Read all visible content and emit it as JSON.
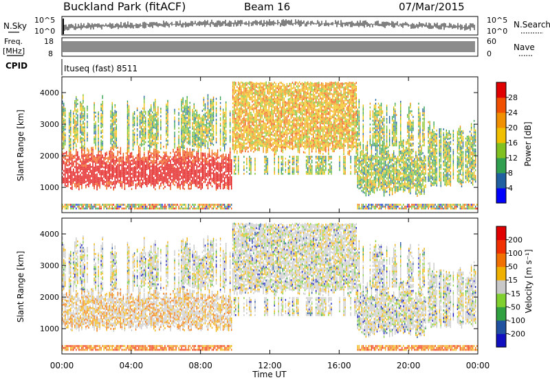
{
  "header": {
    "title": "Buckland Park (fitACF)",
    "beam": "Beam 16",
    "date": "07/Mar/2015"
  },
  "panels": {
    "nsky": {
      "label": "N.Sky",
      "ticks_left": [
        "10^5",
        "10^0"
      ],
      "right_label": "N.Search",
      "ticks_right": [
        "10^5",
        "10^0"
      ]
    },
    "freq": {
      "label_line1": "Freq.",
      "label_line2": "[MHz]",
      "ticks_left": [
        "18",
        "8"
      ],
      "right_label": "Nave",
      "ticks_right": [
        "60",
        "0"
      ]
    },
    "cpid": {
      "label": "CPID",
      "value": "Ituseq (fast) 8511"
    }
  },
  "chart_data": [
    {
      "type": "heatmap",
      "name": "power",
      "ylabel": "Slant Range [km]",
      "ylim": [
        200,
        4500
      ],
      "yticks": [
        1000,
        2000,
        3000,
        4000
      ],
      "colorbar": {
        "label": "Power [dB]",
        "ticks": [
          "4",
          "8",
          "12",
          "16",
          "20",
          "24",
          "28"
        ],
        "colors": [
          "#0000ff",
          "#2060a0",
          "#30a050",
          "#80c020",
          "#f0c000",
          "#f09000",
          "#f05000",
          "#e00000"
        ]
      }
    },
    {
      "type": "heatmap",
      "name": "velocity",
      "ylabel": "Slant Range [km]",
      "ylim": [
        200,
        4500
      ],
      "yticks": [
        1000,
        2000,
        3000,
        4000
      ],
      "xlabel": "Time UT",
      "xticks": [
        "00:00",
        "04:00",
        "08:00",
        "12:00",
        "16:00",
        "20:00",
        "00:00"
      ],
      "colorbar": {
        "label": "Velocity [m s⁻¹]",
        "ticks": [
          "200",
          "100",
          "50",
          "15",
          "-15",
          "-50",
          "-100",
          "-200"
        ],
        "colors": [
          "#1010c0",
          "#2050a0",
          "#30a040",
          "#80d030",
          "#c8c8c8",
          "#f0b000",
          "#f07000",
          "#f03000",
          "#e00000"
        ]
      }
    }
  ]
}
